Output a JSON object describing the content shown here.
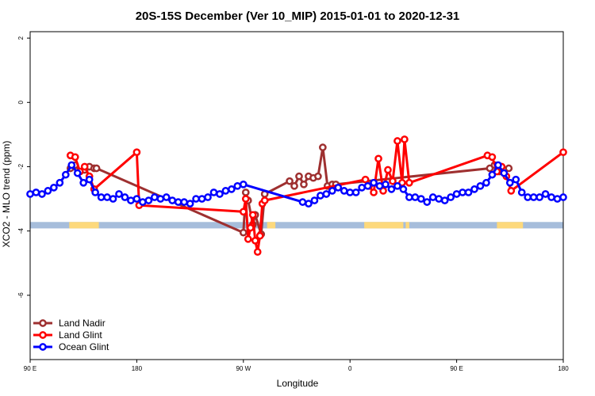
{
  "chart_data": {
    "type": "line",
    "title": "20S-15S December (Ver 10_MIP)   2015-01-01 to 2020-12-31",
    "xlabel": "Longitude",
    "ylabel": "XCO2 - MLO trend (ppm)",
    "xlim": [
      0,
      450
    ],
    "ylim": [
      -8,
      2.2
    ],
    "x_ticks": [
      {
        "value": 0,
        "label": "90 E"
      },
      {
        "value": 90,
        "label": "180"
      },
      {
        "value": 180,
        "label": "90 W"
      },
      {
        "value": 270,
        "label": "0"
      },
      {
        "value": 360,
        "label": "90 E"
      },
      {
        "value": 450,
        "label": "180"
      }
    ],
    "y_ticks": [
      {
        "value": 2,
        "label": "2"
      },
      {
        "value": 0,
        "label": "0"
      },
      {
        "value": -2,
        "label": "-2"
      },
      {
        "value": -4,
        "label": "-4"
      },
      {
        "value": -6,
        "label": "-6"
      }
    ],
    "grid": false,
    "legend_position": "bottom-left",
    "surface_strip": {
      "y_range": [
        -3.92,
        -3.72
      ],
      "ocean_color": "#a6bddb",
      "land_color": "#fdd97c",
      "land_segments": [
        [
          33,
          58
        ],
        [
          200,
          207
        ],
        [
          282,
          315
        ],
        [
          317,
          320
        ],
        [
          394,
          416
        ]
      ]
    },
    "series": [
      {
        "name": "Land Nadir",
        "color": "#9e3030",
        "x": [
          34,
          38,
          42,
          46,
          50,
          54,
          56,
          180,
          182,
          184,
          188,
          190,
          195,
          198,
          219,
          223,
          227,
          231,
          235,
          239,
          243,
          247,
          251,
          255,
          258,
          388,
          392,
          396,
          400,
          404
        ],
        "y": [
          -2.05,
          -1.95,
          -2.15,
          -2.1,
          -2.0,
          -2.05,
          -2.05,
          -4.05,
          -2.8,
          -3.05,
          -3.8,
          -3.5,
          -4.1,
          -2.85,
          -2.45,
          -2.6,
          -2.3,
          -2.55,
          -2.3,
          -2.35,
          -2.3,
          -1.4,
          -2.6,
          -2.55,
          -2.55,
          -2.05,
          -1.95,
          -2.15,
          -2.1,
          -2.05
        ]
      },
      {
        "name": "Land Glint",
        "color": "#ff0000",
        "x": [
          34,
          38,
          42,
          46,
          50,
          54,
          90,
          92,
          180,
          182,
          184,
          186,
          188,
          190,
          192,
          194,
          196,
          198,
          283,
          286,
          290,
          294,
          298,
          302,
          306,
          310,
          314,
          316,
          320,
          386,
          390,
          394,
          398,
          402,
          406,
          450
        ],
        "y": [
          -1.65,
          -1.7,
          -2.15,
          -2.0,
          -2.3,
          -2.7,
          -1.55,
          -3.2,
          -3.4,
          -3.0,
          -4.25,
          -3.9,
          -3.5,
          -4.3,
          -4.65,
          -4.15,
          -3.15,
          -3.05,
          -2.4,
          -2.6,
          -2.8,
          -1.75,
          -2.75,
          -2.1,
          -2.45,
          -1.2,
          -2.5,
          -1.15,
          -2.5,
          -1.65,
          -1.7,
          -2.15,
          -2.0,
          -2.3,
          -2.75,
          -1.55
        ]
      },
      {
        "name": "Ocean Glint",
        "color": "#0000ff",
        "x": [
          0,
          5,
          10,
          15,
          20,
          25,
          30,
          35,
          40,
          45,
          50,
          55,
          60,
          65,
          70,
          75,
          80,
          85,
          90,
          95,
          100,
          105,
          110,
          115,
          120,
          125,
          130,
          135,
          140,
          145,
          150,
          155,
          160,
          165,
          170,
          175,
          180,
          230,
          235,
          240,
          245,
          250,
          255,
          260,
          265,
          270,
          275,
          280,
          285,
          290,
          295,
          300,
          305,
          310,
          315,
          320,
          325,
          330,
          335,
          340,
          345,
          350,
          355,
          360,
          365,
          370,
          375,
          380,
          385,
          390,
          395,
          400,
          405,
          410,
          415,
          420,
          425,
          430,
          435,
          440,
          445,
          450
        ],
        "y": [
          -2.85,
          -2.8,
          -2.85,
          -2.75,
          -2.65,
          -2.5,
          -2.25,
          -1.95,
          -2.2,
          -2.5,
          -2.4,
          -2.8,
          -2.95,
          -2.95,
          -3.0,
          -2.85,
          -2.95,
          -3.05,
          -3.0,
          -3.1,
          -3.05,
          -2.95,
          -3.0,
          -2.95,
          -3.05,
          -3.1,
          -3.1,
          -3.15,
          -3.0,
          -3.0,
          -2.95,
          -2.8,
          -2.85,
          -2.75,
          -2.7,
          -2.6,
          -2.55,
          -3.1,
          -3.15,
          -3.05,
          -2.9,
          -2.85,
          -2.75,
          -2.65,
          -2.75,
          -2.8,
          -2.8,
          -2.65,
          -2.6,
          -2.5,
          -2.6,
          -2.55,
          -2.7,
          -2.6,
          -2.7,
          -2.95,
          -2.95,
          -3.0,
          -3.1,
          -2.95,
          -3.0,
          -3.05,
          -2.95,
          -2.85,
          -2.8,
          -2.8,
          -2.7,
          -2.6,
          -2.5,
          -2.25,
          -1.95,
          -2.2,
          -2.5,
          -2.4,
          -2.8,
          -2.95,
          -2.95,
          -2.95,
          -2.85,
          -2.95,
          -3.0,
          -2.95
        ]
      }
    ]
  }
}
